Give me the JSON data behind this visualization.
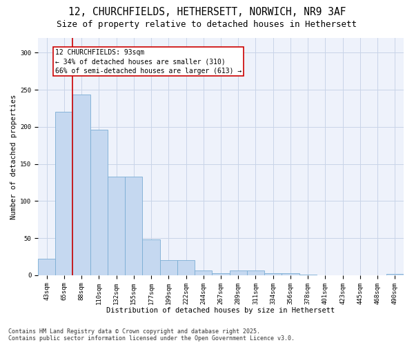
{
  "title_line1": "12, CHURCHFIELDS, HETHERSETT, NORWICH, NR9 3AF",
  "title_line2": "Size of property relative to detached houses in Hethersett",
  "xlabel": "Distribution of detached houses by size in Hethersett",
  "ylabel": "Number of detached properties",
  "categories": [
    "43sqm",
    "65sqm",
    "88sqm",
    "110sqm",
    "132sqm",
    "155sqm",
    "177sqm",
    "199sqm",
    "222sqm",
    "244sqm",
    "267sqm",
    "289sqm",
    "311sqm",
    "334sqm",
    "356sqm",
    "378sqm",
    "401sqm",
    "423sqm",
    "445sqm",
    "468sqm",
    "490sqm"
  ],
  "values": [
    22,
    220,
    244,
    196,
    133,
    133,
    48,
    20,
    20,
    6,
    3,
    6,
    6,
    3,
    3,
    1,
    0,
    0,
    0,
    0,
    2
  ],
  "bar_color": "#c5d8f0",
  "bar_edge_color": "#7aadd4",
  "grid_color": "#c8d4e8",
  "background_color": "#eef2fb",
  "vline_x_index": 2,
  "vline_color": "#cc0000",
  "annotation_text": "12 CHURCHFIELDS: 93sqm\n← 34% of detached houses are smaller (310)\n66% of semi-detached houses are larger (613) →",
  "ylim": [
    0,
    320
  ],
  "yticks": [
    0,
    50,
    100,
    150,
    200,
    250,
    300
  ],
  "footer_line1": "Contains HM Land Registry data © Crown copyright and database right 2025.",
  "footer_line2": "Contains public sector information licensed under the Open Government Licence v3.0.",
  "title_fontsize": 10.5,
  "subtitle_fontsize": 9,
  "axis_label_fontsize": 7.5,
  "tick_fontsize": 6.5,
  "annotation_fontsize": 7,
  "footer_fontsize": 6
}
